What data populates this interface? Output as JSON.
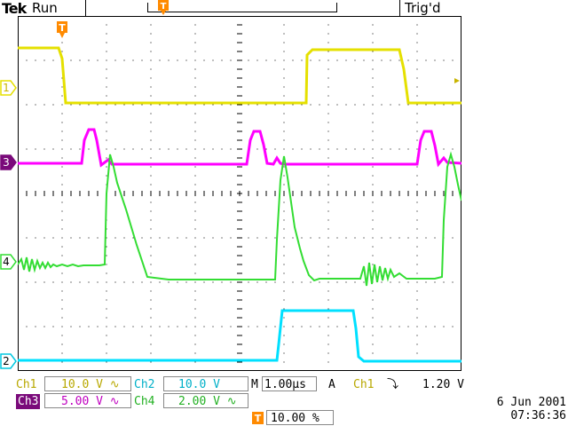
{
  "header": {
    "brand": "Tek",
    "run_state": "Run",
    "trigger_state": "Trig'd",
    "trigger_marker": "T"
  },
  "channels": {
    "ch1": {
      "marker": "1",
      "color": "#e5e000"
    },
    "ch2": {
      "marker": "2",
      "color": "#00e0ff"
    },
    "ch3": {
      "marker": "3",
      "color": "#ff00ff"
    },
    "ch4": {
      "marker": "4",
      "color": "#33dd33"
    }
  },
  "readout": {
    "ch1_label": "Ch1",
    "ch1_scale": "10.0 V",
    "ch1_coupling": "∿",
    "ch2_label": "Ch2",
    "ch2_scale": "10.0 V",
    "ch3_label": "Ch3",
    "ch3_scale": "5.00 V",
    "ch3_coupling": "∿",
    "ch4_label": "Ch4",
    "ch4_scale": "2.00 V",
    "ch4_coupling": "∿",
    "timebase_label": "M",
    "timebase": "1.00µs",
    "acq_mode": "A",
    "trigger_source": "Ch1",
    "trigger_slope": "⤵",
    "trigger_level": "1.20 V",
    "trigger_position_marker": "T",
    "trigger_position": "10.00 %"
  },
  "date": "6 Jun  2001",
  "time": "07:36:36"
}
